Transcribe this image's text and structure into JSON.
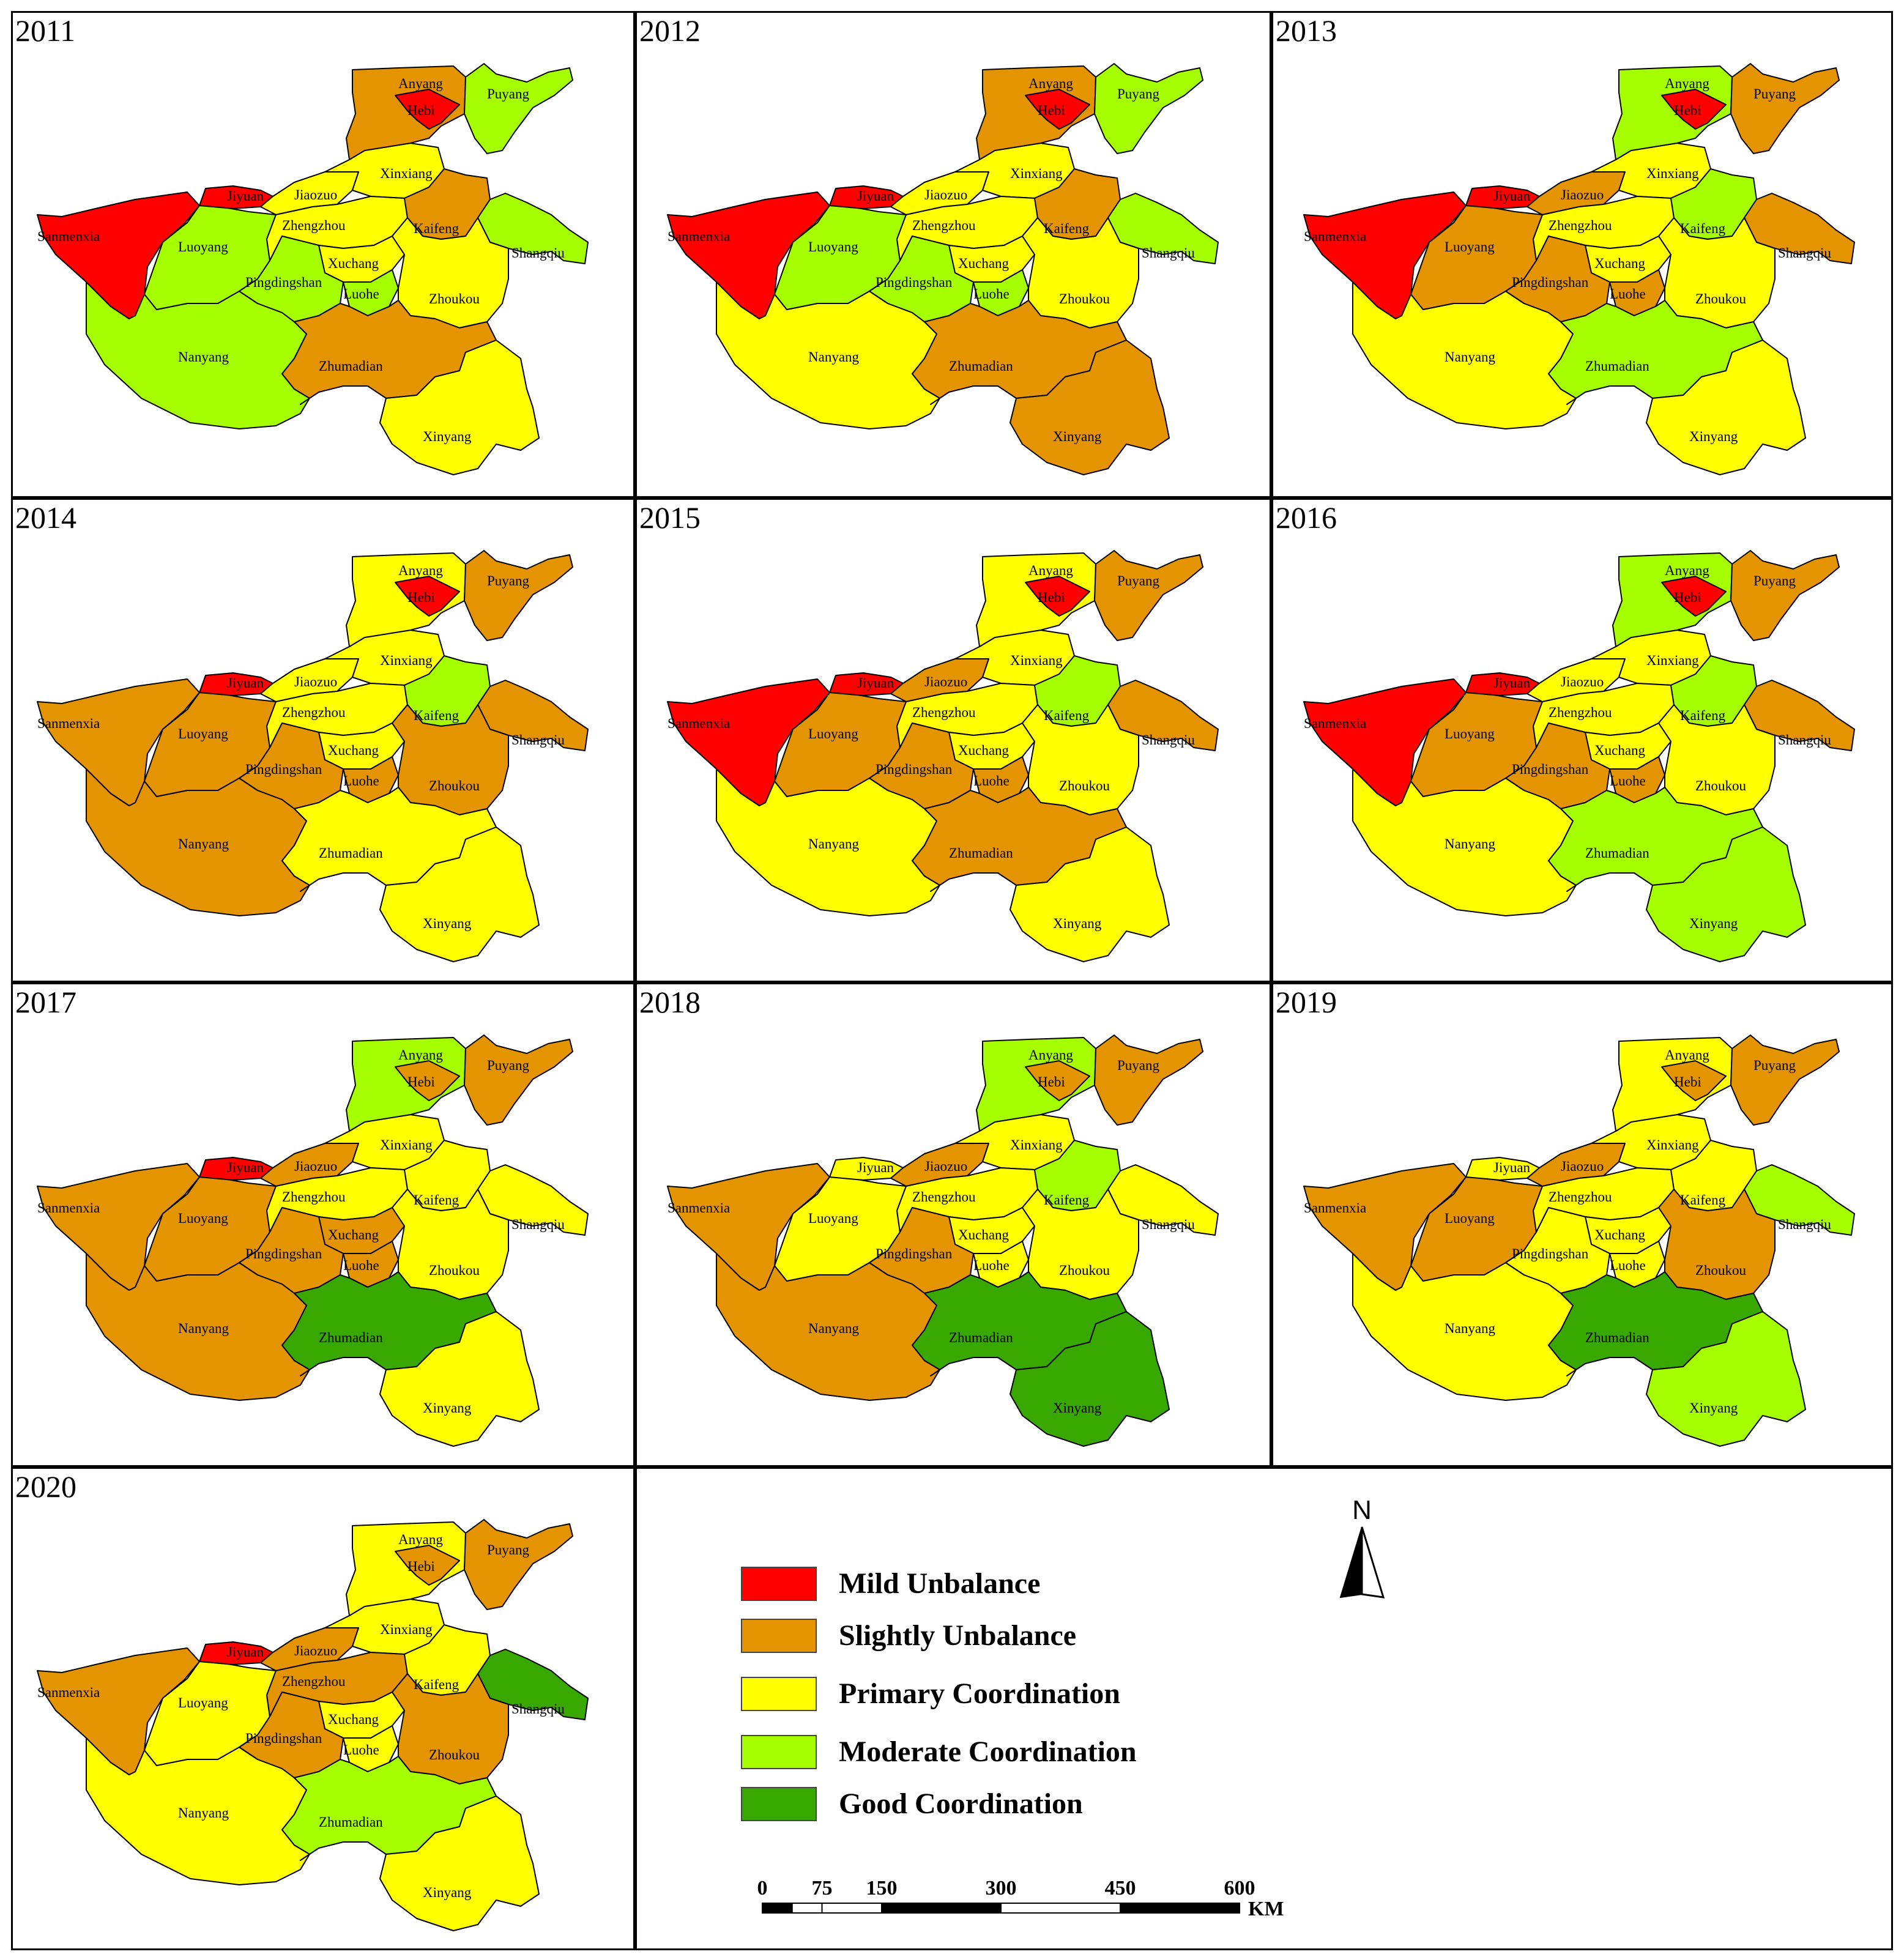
{
  "legend": {
    "items": [
      {
        "key": "MU",
        "label": "Mild Unbalance",
        "color": "#ff0000"
      },
      {
        "key": "SU",
        "label": "Slightly Unbalance",
        "color": "#e39400"
      },
      {
        "key": "PC",
        "label": "Primary Coordination",
        "color": "#ffff00"
      },
      {
        "key": "MC",
        "label": "Moderate Coordination",
        "color": "#a6ff00"
      },
      {
        "key": "GC",
        "label": "Good Coordination",
        "color": "#38a800"
      }
    ]
  },
  "north_label": "N",
  "scalebar": {
    "ticks": [
      "0",
      "75",
      "150",
      "300",
      "450",
      "600"
    ],
    "unit": "KM"
  },
  "region_names": {
    "sanmenxia": "Sanmenxia",
    "luoyang": "Luoyang",
    "jiyuan": "Jiyuan",
    "jiaozuo": "Jiaozuo",
    "xinxiang": "Xinxiang",
    "anyang": "Anyang",
    "hebi": "Hebi",
    "puyang": "Puyang",
    "zhengzhou": "Zhengzhou",
    "kaifeng": "Kaifeng",
    "shangqiu": "Shangqiu",
    "xuchang": "Xuchang",
    "pingdingshan": "Pingdingshan",
    "luohe": "Luohe",
    "zhoukou": "Zhoukou",
    "nanyang": "Nanyang",
    "zhumadian": "Zhumadian",
    "xinyang": "Xinyang"
  },
  "years": [
    {
      "year": "2011",
      "classes": {
        "sanmenxia": "MU",
        "luoyang": "MC",
        "jiyuan": "MU",
        "jiaozuo": "PC",
        "xinxiang": "PC",
        "anyang": "SU",
        "hebi": "MU",
        "puyang": "MC",
        "zhengzhou": "PC",
        "kaifeng": "SU",
        "shangqiu": "MC",
        "xuchang": "PC",
        "pingdingshan": "MC",
        "luohe": "MC",
        "zhoukou": "PC",
        "nanyang": "MC",
        "zhumadian": "SU",
        "xinyang": "PC"
      }
    },
    {
      "year": "2012",
      "classes": {
        "sanmenxia": "MU",
        "luoyang": "MC",
        "jiyuan": "MU",
        "jiaozuo": "PC",
        "xinxiang": "PC",
        "anyang": "SU",
        "hebi": "MU",
        "puyang": "MC",
        "zhengzhou": "PC",
        "kaifeng": "SU",
        "shangqiu": "MC",
        "xuchang": "PC",
        "pingdingshan": "MC",
        "luohe": "MC",
        "zhoukou": "PC",
        "nanyang": "PC",
        "zhumadian": "SU",
        "xinyang": "SU"
      }
    },
    {
      "year": "2013",
      "classes": {
        "sanmenxia": "MU",
        "luoyang": "SU",
        "jiyuan": "MU",
        "jiaozuo": "SU",
        "xinxiang": "PC",
        "anyang": "MC",
        "hebi": "MU",
        "puyang": "SU",
        "zhengzhou": "PC",
        "kaifeng": "MC",
        "shangqiu": "SU",
        "xuchang": "PC",
        "pingdingshan": "SU",
        "luohe": "SU",
        "zhoukou": "PC",
        "nanyang": "PC",
        "zhumadian": "MC",
        "xinyang": "PC"
      }
    },
    {
      "year": "2014",
      "classes": {
        "sanmenxia": "SU",
        "luoyang": "SU",
        "jiyuan": "MU",
        "jiaozuo": "PC",
        "xinxiang": "PC",
        "anyang": "PC",
        "hebi": "MU",
        "puyang": "SU",
        "zhengzhou": "PC",
        "kaifeng": "MC",
        "shangqiu": "SU",
        "xuchang": "PC",
        "pingdingshan": "SU",
        "luohe": "SU",
        "zhoukou": "SU",
        "nanyang": "SU",
        "zhumadian": "PC",
        "xinyang": "PC"
      }
    },
    {
      "year": "2015",
      "classes": {
        "sanmenxia": "MU",
        "luoyang": "SU",
        "jiyuan": "MU",
        "jiaozuo": "SU",
        "xinxiang": "PC",
        "anyang": "PC",
        "hebi": "MU",
        "puyang": "SU",
        "zhengzhou": "PC",
        "kaifeng": "MC",
        "shangqiu": "SU",
        "xuchang": "PC",
        "pingdingshan": "SU",
        "luohe": "SU",
        "zhoukou": "PC",
        "nanyang": "PC",
        "zhumadian": "SU",
        "xinyang": "PC"
      }
    },
    {
      "year": "2016",
      "classes": {
        "sanmenxia": "MU",
        "luoyang": "SU",
        "jiyuan": "MU",
        "jiaozuo": "PC",
        "xinxiang": "PC",
        "anyang": "MC",
        "hebi": "MU",
        "puyang": "SU",
        "zhengzhou": "PC",
        "kaifeng": "MC",
        "shangqiu": "SU",
        "xuchang": "PC",
        "pingdingshan": "SU",
        "luohe": "SU",
        "zhoukou": "PC",
        "nanyang": "PC",
        "zhumadian": "MC",
        "xinyang": "MC"
      }
    },
    {
      "year": "2017",
      "classes": {
        "sanmenxia": "SU",
        "luoyang": "SU",
        "jiyuan": "MU",
        "jiaozuo": "SU",
        "xinxiang": "PC",
        "anyang": "MC",
        "hebi": "SU",
        "puyang": "SU",
        "zhengzhou": "PC",
        "kaifeng": "PC",
        "shangqiu": "PC",
        "xuchang": "SU",
        "pingdingshan": "SU",
        "luohe": "SU",
        "zhoukou": "PC",
        "nanyang": "SU",
        "zhumadian": "GC",
        "xinyang": "PC"
      }
    },
    {
      "year": "2018",
      "classes": {
        "sanmenxia": "SU",
        "luoyang": "PC",
        "jiyuan": "PC",
        "jiaozuo": "SU",
        "xinxiang": "PC",
        "anyang": "MC",
        "hebi": "SU",
        "puyang": "SU",
        "zhengzhou": "PC",
        "kaifeng": "MC",
        "shangqiu": "PC",
        "xuchang": "PC",
        "pingdingshan": "SU",
        "luohe": "PC",
        "zhoukou": "PC",
        "nanyang": "SU",
        "zhumadian": "GC",
        "xinyang": "GC"
      }
    },
    {
      "year": "2019",
      "classes": {
        "sanmenxia": "SU",
        "luoyang": "SU",
        "jiyuan": "PC",
        "jiaozuo": "SU",
        "xinxiang": "PC",
        "anyang": "PC",
        "hebi": "SU",
        "puyang": "SU",
        "zhengzhou": "PC",
        "kaifeng": "PC",
        "shangqiu": "MC",
        "xuchang": "PC",
        "pingdingshan": "PC",
        "luohe": "PC",
        "zhoukou": "SU",
        "nanyang": "PC",
        "zhumadian": "GC",
        "xinyang": "MC"
      }
    },
    {
      "year": "2020",
      "classes": {
        "sanmenxia": "SU",
        "luoyang": "PC",
        "jiyuan": "MU",
        "jiaozuo": "SU",
        "xinxiang": "PC",
        "anyang": "PC",
        "hebi": "SU",
        "puyang": "SU",
        "zhengzhou": "SU",
        "kaifeng": "PC",
        "shangqiu": "GC",
        "xuchang": "PC",
        "pingdingshan": "SU",
        "luohe": "PC",
        "zhoukou": "SU",
        "nanyang": "PC",
        "zhumadian": "MC",
        "xinyang": "PC"
      }
    }
  ]
}
